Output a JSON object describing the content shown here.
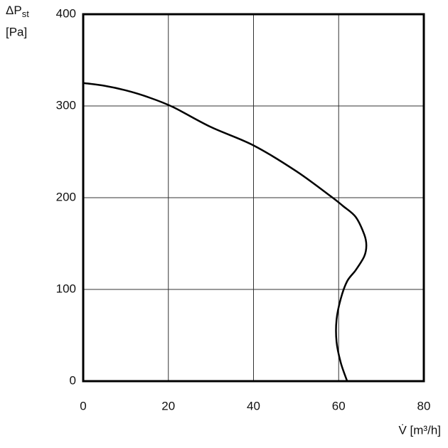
{
  "chart_data": {
    "type": "line",
    "ylabel": {
      "symbol": "ΔP",
      "subscript": "st",
      "unit": "[Pa]"
    },
    "xlabel": "V̇ [m³/h]",
    "xlim": [
      0,
      80
    ],
    "xticks": [
      0,
      20,
      40,
      60,
      80
    ],
    "ylim": [
      0,
      400
    ],
    "yticks": [
      0,
      100,
      200,
      300,
      400
    ],
    "grid": true,
    "series": [
      {
        "color": "#000000",
        "x": [
          0,
          5,
          10,
          15,
          21,
          30,
          40,
          50,
          58,
          61,
          64,
          66,
          66.5,
          66,
          64,
          62,
          60.5,
          59.5,
          59.5,
          60.5,
          62
        ],
        "values": [
          325,
          322,
          317,
          310,
          299,
          277,
          257,
          229,
          202,
          191,
          179,
          160,
          148,
          136,
          121,
          109,
          90,
          67,
          43,
          20,
          0
        ]
      }
    ]
  }
}
